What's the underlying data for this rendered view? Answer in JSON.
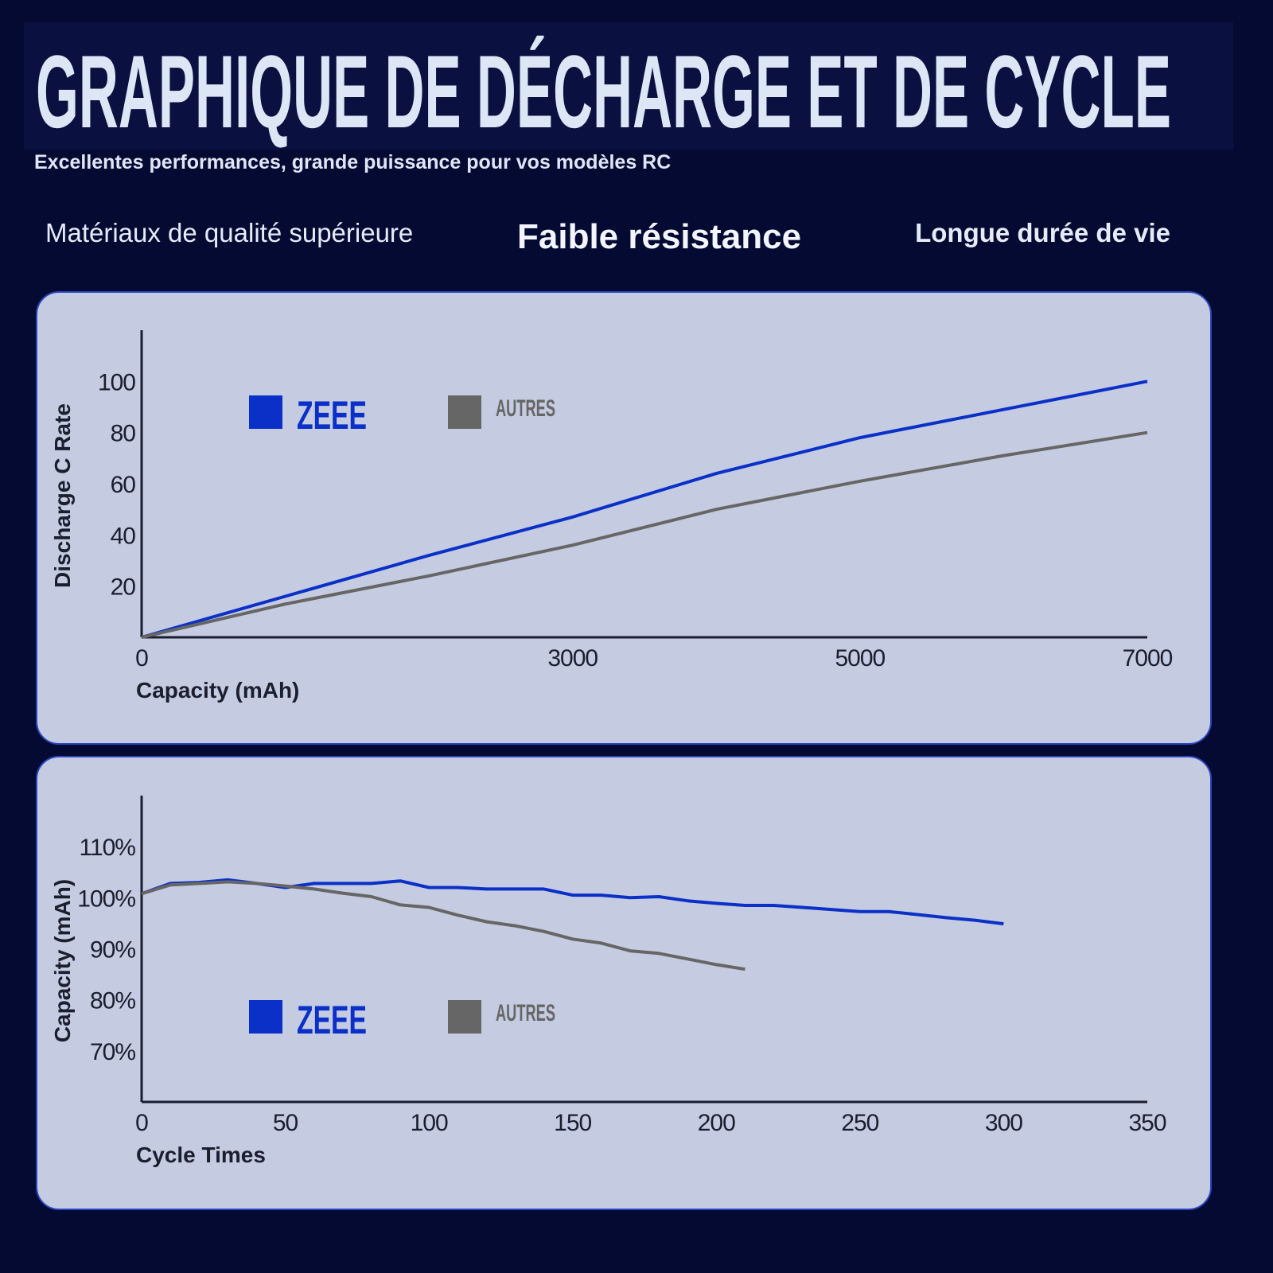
{
  "header": {
    "title": "GRAPHIQUE DE DÉCHARGE ET DE CYCLE",
    "subtitle": "Excellentes performances, grande puissance pour vos modèles RC",
    "features": [
      "Matériaux de qualité supérieure",
      "Faible résistance",
      "Longue durée de vie"
    ]
  },
  "chart_data": [
    {
      "type": "line",
      "x_label": "Capacity (mAh)",
      "y_label": "Discharge C Rate",
      "x": [
        0,
        1000,
        2000,
        3000,
        4000,
        5000,
        6000,
        7000
      ],
      "series": [
        {
          "name": "ZEEE",
          "color": "#0b30c8",
          "values": [
            0,
            16,
            32,
            47,
            64,
            78,
            89,
            100
          ]
        },
        {
          "name": "AUTRES",
          "color": "#666666",
          "values": [
            0,
            13,
            24,
            36,
            50,
            61,
            71,
            80
          ]
        }
      ],
      "xlim": [
        0,
        7000
      ],
      "xticks": [
        0,
        3000,
        5000,
        7000
      ],
      "ylim": [
        0,
        120
      ],
      "yticks": [
        20,
        40,
        60,
        80,
        100
      ],
      "grid": false,
      "legend": "upper left"
    },
    {
      "type": "line",
      "x_label": "Cycle Times",
      "y_label": "Capacity (mAh)",
      "x": [
        0,
        10,
        20,
        30,
        40,
        50,
        60,
        70,
        80,
        90,
        100,
        110,
        120,
        130,
        140,
        150,
        160,
        170,
        180,
        190,
        200,
        210,
        220,
        230,
        240,
        250,
        260,
        270,
        280,
        290,
        300
      ],
      "series": [
        {
          "name": "ZEEE",
          "color": "#0b30c8",
          "values": [
            100.8,
            102.8,
            103,
            103.5,
            102.8,
            102,
            102.8,
            102.8,
            102.8,
            103.3,
            102,
            102,
            101.7,
            101.7,
            101.7,
            100.5,
            100.5,
            100,
            100.2,
            99.4,
            98.9,
            98.5,
            98.5,
            98.1,
            97.7,
            97.3,
            97.3,
            96.7,
            96.1,
            95.6,
            94.9
          ]
        },
        {
          "name": "AUTRES",
          "color": "#666666",
          "values": [
            100.8,
            102.5,
            102.8,
            103.1,
            102.8,
            102.3,
            101.7,
            100.9,
            100.2,
            98.6,
            98.1,
            96.6,
            95.3,
            94.5,
            93.4,
            91.9,
            91.1,
            89.6,
            89.1,
            88,
            86.9,
            86,
            null,
            null,
            null,
            null,
            null,
            null,
            null,
            null,
            null
          ]
        }
      ],
      "xlim": [
        0,
        350
      ],
      "xticks": [
        0,
        50,
        100,
        150,
        200,
        250,
        300,
        350
      ],
      "ylim": [
        60,
        120
      ],
      "yticks": [
        {
          "value": 70,
          "label": "70%"
        },
        {
          "value": 80,
          "label": "80%"
        },
        {
          "value": 90,
          "label": "90%"
        },
        {
          "value": 100,
          "label": "100%"
        },
        {
          "value": 110,
          "label": "110%"
        }
      ],
      "grid": false,
      "legend": "lower left"
    }
  ]
}
